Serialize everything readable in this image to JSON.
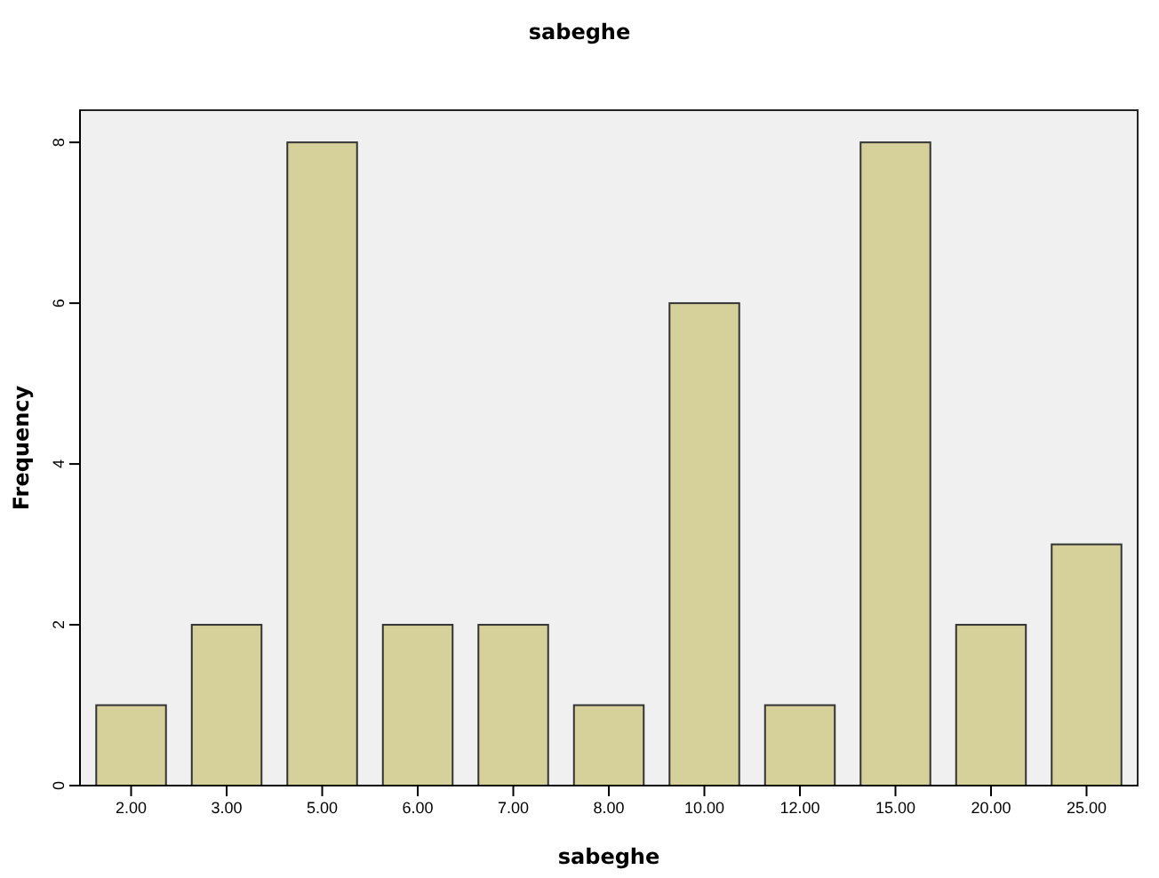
{
  "chart_data": {
    "type": "bar",
    "title": "sabeghe",
    "xlabel": "sabeghe",
    "ylabel": "Frequency",
    "categories": [
      "2.00",
      "3.00",
      "5.00",
      "6.00",
      "7.00",
      "8.00",
      "10.00",
      "12.00",
      "15.00",
      "20.00",
      "25.00"
    ],
    "values": [
      1,
      2,
      8,
      2,
      2,
      1,
      6,
      1,
      8,
      2,
      3
    ],
    "color": "#d6d09a",
    "ylim": [
      0,
      8.4
    ],
    "yticks": [
      0,
      2,
      4,
      6,
      8
    ],
    "grid": false
  }
}
